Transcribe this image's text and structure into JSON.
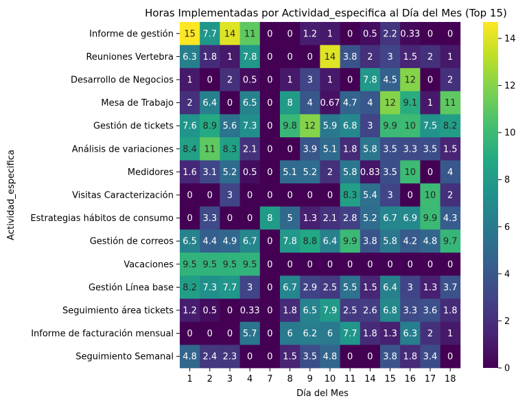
{
  "chart_data": {
    "type": "heatmap",
    "title": "Horas Implementadas por Actividad_especifica al Día del Mes (Top 15)",
    "xlabel": "Día del Mes",
    "ylabel": "Actividad_especifica",
    "colormap": "viridis",
    "vmin": 0,
    "vmax": 14.7,
    "colorbar_ticks": [
      0,
      2,
      4,
      6,
      8,
      10,
      12,
      14
    ],
    "x": [
      "1",
      "2",
      "3",
      "4",
      "7",
      "8",
      "9",
      "10",
      "11",
      "14",
      "15",
      "16",
      "17",
      "18"
    ],
    "y": [
      "Informe de gestión",
      "Reuniones Vertebra",
      "Desarrollo de Negocios",
      "Mesa de Trabajo",
      "Gestión de tickets",
      "Análisis de variaciones",
      "Medidores",
      "Visitas Caracterización",
      "Estrategias hábitos de consumo",
      "Gestión de correos",
      "Vacaciones",
      "Gestión Línea base",
      "Seguimiento área tickets",
      "Informe de facturación mensual",
      "Seguimiento Semanal"
    ],
    "values": [
      [
        14.7,
        7.7,
        14,
        11,
        0,
        0,
        1.2,
        1,
        0,
        0.5,
        2.2,
        0.33,
        0,
        0
      ],
      [
        6.3,
        1.8,
        1,
        7.8,
        0,
        0,
        0,
        14,
        3.8,
        2,
        3,
        1.5,
        2,
        1
      ],
      [
        1,
        0,
        2,
        0.5,
        0,
        1,
        3,
        1,
        0,
        7.8,
        4.5,
        12,
        0,
        2
      ],
      [
        2,
        6.4,
        0,
        6.5,
        0,
        8,
        4,
        0.67,
        4.7,
        4,
        12,
        9.1,
        1,
        11
      ],
      [
        7.6,
        8.9,
        5.6,
        7.3,
        0,
        9.8,
        12,
        5.9,
        6.8,
        3,
        9.9,
        10,
        7.5,
        8.2
      ],
      [
        8.4,
        11,
        8.3,
        2.1,
        0,
        0,
        3.9,
        5.1,
        1.8,
        5.8,
        3.5,
        3.3,
        3.5,
        1.5
      ],
      [
        1.6,
        3.1,
        5.2,
        0.5,
        0,
        5.1,
        5.2,
        2,
        5.8,
        0.83,
        3.5,
        10,
        0,
        4
      ],
      [
        0,
        0,
        3,
        0,
        0,
        0,
        0,
        0,
        8.3,
        5.4,
        3,
        0,
        10,
        2
      ],
      [
        0,
        3.3,
        0,
        0,
        8,
        5,
        1.3,
        2.1,
        2.8,
        5.2,
        6.7,
        6.9,
        9.9,
        4.3
      ],
      [
        6.5,
        4.4,
        4.9,
        6.7,
        0,
        7.8,
        8.8,
        6.4,
        9.9,
        3.8,
        5.8,
        4.2,
        4.8,
        9.7
      ],
      [
        9.5,
        9.5,
        9.5,
        9.5,
        0,
        0,
        0,
        0,
        0,
        0,
        0,
        0,
        0,
        0
      ],
      [
        8.2,
        7.3,
        7.7,
        3,
        0,
        6.7,
        2.9,
        2.5,
        5.5,
        1.5,
        6.4,
        3,
        1.3,
        3.7
      ],
      [
        1.2,
        0.5,
        0,
        0.33,
        0,
        1.8,
        6.5,
        7.9,
        2.5,
        2.6,
        6.8,
        3.3,
        3.6,
        1.8
      ],
      [
        0,
        0,
        0,
        5.7,
        0,
        6,
        6.2,
        6,
        7.7,
        1.8,
        1.3,
        6.3,
        2,
        1
      ],
      [
        4.8,
        2.4,
        2.3,
        0,
        0,
        1.5,
        3.5,
        4.8,
        0,
        0,
        3.8,
        1.8,
        3.4,
        0
      ]
    ],
    "annotations": [
      [
        "15",
        "7.7",
        "14",
        "11",
        "0",
        "0",
        "1.2",
        "1",
        "0",
        "0.5",
        "2.2",
        "0.33",
        "0",
        "0"
      ],
      [
        "6.3",
        "1.8",
        "1",
        "7.8",
        "0",
        "0",
        "0",
        "14",
        "3.8",
        "2",
        "3",
        "1.5",
        "2",
        "1"
      ],
      [
        "1",
        "0",
        "2",
        "0.5",
        "0",
        "1",
        "3",
        "1",
        "0",
        "7.8",
        "4.5",
        "12",
        "0",
        "2"
      ],
      [
        "2",
        "6.4",
        "0",
        "6.5",
        "0",
        "8",
        "4",
        "0.67",
        "4.7",
        "4",
        "12",
        "9.1",
        "1",
        "11"
      ],
      [
        "7.6",
        "8.9",
        "5.6",
        "7.3",
        "0",
        "9.8",
        "12",
        "5.9",
        "6.8",
        "3",
        "9.9",
        "10",
        "7.5",
        "8.2"
      ],
      [
        "8.4",
        "11",
        "8.3",
        "2.1",
        "0",
        "0",
        "3.9",
        "5.1",
        "1.8",
        "5.8",
        "3.5",
        "3.3",
        "3.5",
        "1.5"
      ],
      [
        "1.6",
        "3.1",
        "5.2",
        "0.5",
        "0",
        "5.1",
        "5.2",
        "2",
        "5.8",
        "0.83",
        "3.5",
        "10",
        "0",
        "4"
      ],
      [
        "0",
        "0",
        "3",
        "0",
        "0",
        "0",
        "0",
        "0",
        "8.3",
        "5.4",
        "3",
        "0",
        "10",
        "2"
      ],
      [
        "0",
        "3.3",
        "0",
        "0",
        "8",
        "5",
        "1.3",
        "2.1",
        "2.8",
        "5.2",
        "6.7",
        "6.9",
        "9.9",
        "4.3"
      ],
      [
        "6.5",
        "4.4",
        "4.9",
        "6.7",
        "0",
        "7.8",
        "8.8",
        "6.4",
        "9.9",
        "3.8",
        "5.8",
        "4.2",
        "4.8",
        "9.7"
      ],
      [
        "9.5",
        "9.5",
        "9.5",
        "9.5",
        "0",
        "0",
        "0",
        "0",
        "0",
        "0",
        "0",
        "0",
        "0",
        "0"
      ],
      [
        "8.2",
        "7.3",
        "7.7",
        "3",
        "0",
        "6.7",
        "2.9",
        "2.5",
        "5.5",
        "1.5",
        "6.4",
        "3",
        "1.3",
        "3.7"
      ],
      [
        "1.2",
        "0.5",
        "0",
        "0.33",
        "0",
        "1.8",
        "6.5",
        "7.9",
        "2.5",
        "2.6",
        "6.8",
        "3.3",
        "3.6",
        "1.8"
      ],
      [
        "0",
        "0",
        "0",
        "5.7",
        "0",
        "6",
        "6.2",
        "6",
        "7.7",
        "1.8",
        "1.3",
        "6.3",
        "2",
        "1"
      ],
      [
        "4.8",
        "2.4",
        "2.3",
        "0",
        "0",
        "1.5",
        "3.5",
        "4.8",
        "0",
        "0",
        "3.8",
        "1.8",
        "3.4",
        "0"
      ]
    ]
  }
}
